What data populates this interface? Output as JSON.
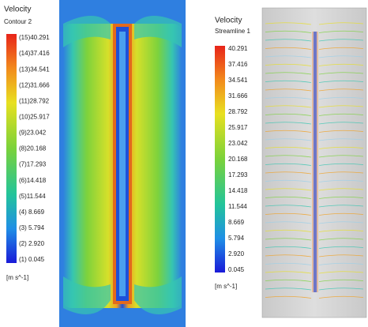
{
  "left_panel": {
    "title": "Velocity",
    "subtitle": "Contour 2",
    "labels": [
      "(15)40.291",
      "(14)37.416",
      "(13)34.541",
      "(12)31.666",
      "(11)28.792",
      "(10)25.917",
      "(9)23.042",
      "(8)20.168",
      "(7)17.293",
      "(6)14.418",
      "(5)11.544",
      "(4) 8.669",
      "(3) 5.794",
      "(2) 2.920",
      "(1) 0.045"
    ],
    "unit": "[m s^-1]"
  },
  "right_panel": {
    "title": "Velocity",
    "subtitle": "Streamline 1",
    "labels": [
      "40.291",
      "37.416",
      "34.541",
      "31.666",
      "28.792",
      "25.917",
      "23.042",
      "20.168",
      "17.293",
      "14.418",
      "11.544",
      "8.669",
      "5.794",
      "2.920",
      "0.045"
    ],
    "unit": "[m s^-1]"
  }
}
